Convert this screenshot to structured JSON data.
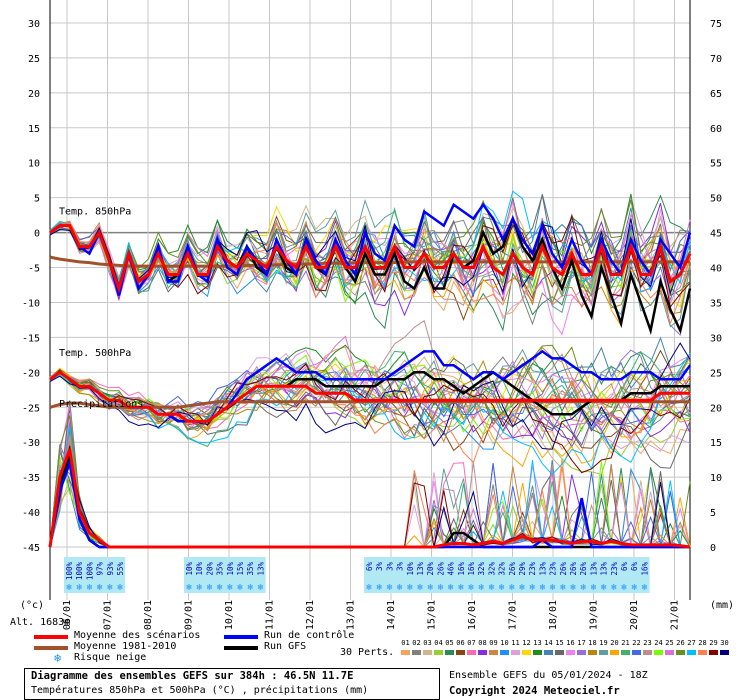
{
  "chart_data": {
    "type": "line",
    "left_axis_ticks": [
      "30",
      "25",
      "20",
      "15",
      "10",
      "5",
      "0",
      "-5",
      "-10",
      "-15",
      "-20",
      "-25",
      "-30",
      "-35",
      "-40",
      "-45"
    ],
    "right_axis_ticks": [
      "75",
      "70",
      "65",
      "60",
      "55",
      "50",
      "45",
      "40",
      "35",
      "30",
      "25",
      "20",
      "15",
      "10",
      "5",
      "0"
    ],
    "left_unit": "(°c)",
    "right_unit": "(mm)",
    "ylim_temp": [
      -45,
      30
    ],
    "ylim_precip": [
      0,
      75
    ],
    "dates": [
      "06/01",
      "07/01",
      "08/01",
      "09/01",
      "10/01",
      "11/01",
      "12/01",
      "13/01",
      "14/01",
      "15/01",
      "16/01",
      "17/01",
      "18/01",
      "19/01",
      "20/01",
      "21/01"
    ],
    "panel_labels": {
      "t850": "Temp. 850hPa",
      "t500": "Temp. 500hPa",
      "precip": "Precipitations"
    },
    "snow_risk_labels": [
      "100%",
      "100%",
      "100%",
      "97%",
      "93%",
      "55%",
      "10%",
      "10%",
      "20%",
      "35%",
      "10%",
      "15%",
      "35%",
      "13%",
      "6%",
      "3%",
      "3%",
      "3%",
      "10%",
      "13%",
      "20%",
      "26%",
      "46%",
      "16%",
      "16%",
      "32%",
      "32%",
      "32%",
      "26%",
      "29%",
      "23%",
      "13%",
      "23%",
      "26%",
      "26%",
      "26%",
      "13%",
      "13%",
      "23%",
      "6%",
      "6%",
      "16%"
    ],
    "series": [
      {
        "name": "Moyenne des scénarios",
        "color": "#ff0000",
        "t850": [
          0,
          1,
          1,
          -2,
          -2,
          0,
          -4,
          -8,
          -3,
          -7,
          -6,
          -3,
          -6,
          -6,
          -3,
          -6,
          -6,
          -2,
          -4,
          -5,
          -3,
          -4,
          -5,
          -2,
          -4,
          -5,
          -2,
          -5,
          -5,
          -2,
          -5,
          -5,
          -2,
          -5,
          -5,
          -2,
          -5,
          -5,
          -3,
          -5,
          -5,
          -3,
          -5,
          -5,
          -2,
          -5,
          -6,
          -3,
          -5,
          -6,
          -2,
          -5,
          -6,
          -3,
          -6,
          -6,
          -2,
          -6,
          -6,
          -2,
          -6,
          -6,
          -2,
          -7,
          -6,
          -3
        ],
        "t500": [
          -21,
          -20,
          -21,
          -22,
          -22,
          -23,
          -24,
          -24,
          -25,
          -25,
          -25,
          -26,
          -26,
          -26,
          -27,
          -27,
          -27,
          -26,
          -25,
          -24,
          -23,
          -22,
          -22,
          -22,
          -22,
          -22,
          -22,
          -23,
          -23,
          -23,
          -23,
          -24,
          -24,
          -24,
          -24,
          -24,
          -24,
          -24,
          -24,
          -24,
          -24,
          -24,
          -24,
          -24,
          -24,
          -24,
          -24,
          -24,
          -24,
          -24,
          -24,
          -24,
          -24,
          -24,
          -24,
          -24,
          -24,
          -24,
          -24,
          -24,
          -24,
          -24,
          -23,
          -23,
          -23,
          -23
        ],
        "precip": [
          0,
          10,
          14,
          5,
          2,
          1,
          0,
          0,
          0,
          0,
          0,
          0,
          0,
          0,
          0,
          0,
          0,
          0,
          0,
          0,
          0,
          0,
          0,
          0,
          0,
          0,
          0,
          0,
          0,
          0,
          0,
          0,
          0,
          0,
          0,
          0,
          0,
          0,
          0,
          0,
          0.3,
          0.5,
          0.5,
          0.3,
          0.5,
          0.8,
          0.5,
          1.0,
          1.5,
          1.0,
          1.0,
          1.0,
          0.8,
          0.5,
          0.8,
          0.8,
          0.5,
          0.8,
          0.5,
          0.3,
          0.3,
          0.3,
          0.3,
          0.3,
          0.2,
          0
        ]
      },
      {
        "name": "Moyenne 1981-2010",
        "color": "#a0522d",
        "t850": [
          -3.5,
          -3.8,
          -4,
          -4.2,
          -4.3,
          -4.5,
          -4.6,
          -4.7,
          -4.8,
          -4.8,
          -4.8,
          -4.8,
          -4.8,
          -4.8,
          -4.8,
          -4.8,
          -4.8,
          -4.8,
          -4.8,
          -4.8,
          -4.7,
          -4.7,
          -4.7,
          -4.6,
          -4.6,
          -4.5,
          -4.5,
          -4.5,
          -4.4,
          -4.4,
          -4.4,
          -4.3,
          -4.3,
          -4.3,
          -4.3,
          -4.3,
          -4.2,
          -4.2,
          -4.2,
          -4.2,
          -4.2,
          -4.2,
          -4.2,
          -4.2,
          -4.2,
          -4.2,
          -4.2,
          -4.2,
          -4.2,
          -4.2,
          -4.2,
          -4.2,
          -4.2,
          -4.2,
          -4.2,
          -4.2,
          -4.2,
          -4.2,
          -4.2,
          -4.2,
          -4.2,
          -4.2,
          -4.2,
          -4.2,
          -4.2,
          -4.2
        ],
        "t500": [
          -25,
          -24.6,
          -24.4,
          -24.4,
          -24.6,
          -24.8,
          -25,
          -25,
          -25,
          -25,
          -25,
          -25,
          -25,
          -25,
          -24.8,
          -24.6,
          -24.4,
          -24.2,
          -24.2,
          -24.2,
          -24.2,
          -24.2,
          -24.2,
          -24.2,
          -24.2,
          -24.2,
          -24.2,
          -24.2,
          -24.2,
          -24.2,
          -24.2,
          -24.2,
          -24.2,
          -24.2,
          -24.2,
          -24.2,
          -24.2,
          -24.2,
          -24.2,
          -24.2,
          -24.2,
          -24.2,
          -24.2,
          -24.2,
          -24.2,
          -24.2,
          -24.2,
          -24.2,
          -24.2,
          -24.2,
          -24.2,
          -24.2,
          -24.2,
          -24.2,
          -24.2,
          -24.2,
          -24.2,
          -24.2,
          -24.2,
          -24.2,
          -24.2,
          -24.2,
          -24.2,
          -24.2,
          -24.2,
          -24.2
        ]
      },
      {
        "name": "Run de contrôle",
        "color": "#0000ff",
        "t850": [
          0,
          1,
          1,
          -2,
          -3,
          0,
          -4,
          -9,
          -3,
          -8,
          -6,
          -2,
          -7,
          -7,
          -2,
          -6,
          -7,
          -1,
          -5,
          -6,
          -2,
          -4,
          -6,
          -1,
          -4,
          -6,
          -1,
          -4,
          -6,
          -1,
          -4,
          -6,
          0,
          -3,
          -4,
          1,
          -1,
          -2,
          3,
          2,
          1,
          4,
          3,
          2,
          4,
          2,
          -1,
          2,
          -1,
          -3,
          1,
          -3,
          -5,
          -1,
          -4,
          -6,
          -1,
          -4,
          -6,
          -1,
          -4,
          -6,
          -1,
          -3,
          -5,
          0
        ],
        "t500": [
          -21,
          -20,
          -21,
          -22,
          -22,
          -23,
          -24,
          -24,
          -25,
          -25,
          -25,
          -26,
          -26,
          -27,
          -27,
          -27,
          -27,
          -26,
          -25,
          -23,
          -21,
          -20,
          -19,
          -18,
          -19,
          -20,
          -20,
          -20,
          -21,
          -21,
          -21,
          -21,
          -21,
          -21,
          -21,
          -20,
          -19,
          -18,
          -17,
          -17,
          -19,
          -19,
          -20,
          -21,
          -20,
          -20,
          -21,
          -20,
          -19,
          -18,
          -17,
          -18,
          -18,
          -19,
          -20,
          -20,
          -21,
          -21,
          -21,
          -20,
          -20,
          -20,
          -21,
          -21,
          -21,
          -19
        ],
        "precip": [
          0,
          8,
          12,
          4,
          1,
          0,
          0,
          0,
          0,
          0,
          0,
          0,
          0,
          0,
          0,
          0,
          0,
          0,
          0,
          0,
          0,
          0,
          0,
          0,
          0,
          0,
          0,
          0,
          0,
          0,
          0,
          0,
          0,
          0,
          0,
          0,
          0,
          0,
          0,
          0,
          0,
          0,
          0,
          0,
          0,
          0,
          0,
          0,
          0,
          0,
          1,
          0,
          0,
          0,
          7,
          0,
          0,
          0,
          0,
          0,
          0,
          0,
          0,
          0,
          0,
          0
        ]
      },
      {
        "name": "Run GFS",
        "color": "#000000",
        "t850": [
          0,
          1,
          1,
          -2,
          -2,
          0,
          -4,
          -8,
          -3,
          -7,
          -6,
          -2,
          -7,
          -6,
          -2,
          -6,
          -6,
          -1,
          -4,
          -5,
          -2,
          -5,
          -6,
          -2,
          -5,
          -6,
          -1,
          -5,
          -6,
          -2,
          -5,
          -7,
          -3,
          -6,
          -6,
          -3,
          -7,
          -8,
          -5,
          -8,
          -8,
          -3,
          -5,
          -4,
          0,
          -3,
          -2,
          2,
          -2,
          -4,
          -1,
          -5,
          -8,
          -4,
          -9,
          -12,
          -5,
          -9,
          -13,
          -6,
          -10,
          -14,
          -7,
          -11,
          -14,
          -8
        ],
        "t500": [
          -21,
          -20,
          -21,
          -22,
          -22,
          -23,
          -24,
          -24,
          -25,
          -25,
          -25,
          -26,
          -26,
          -27,
          -27,
          -27,
          -27,
          -26,
          -25,
          -24,
          -23,
          -22,
          -22,
          -22,
          -22,
          -21,
          -21,
          -21,
          -22,
          -22,
          -22,
          -22,
          -22,
          -22,
          -21,
          -21,
          -21,
          -20,
          -20,
          -21,
          -21,
          -22,
          -23,
          -22,
          -21,
          -20,
          -21,
          -22,
          -23,
          -24,
          -25,
          -26,
          -26,
          -26,
          -25,
          -24,
          -24,
          -24,
          -24,
          -23,
          -23,
          -23,
          -22,
          -22,
          -22,
          -22
        ],
        "precip": [
          0,
          9,
          13,
          4,
          1,
          0,
          0,
          0,
          0,
          0,
          0,
          0,
          0,
          0,
          0,
          0,
          0,
          0,
          0,
          0,
          0,
          0,
          0,
          0,
          0,
          0,
          0,
          0,
          0,
          0,
          0,
          0,
          0,
          0,
          0,
          0,
          0,
          0,
          0,
          0,
          0,
          2,
          2,
          1,
          0,
          0,
          0,
          0,
          0,
          0,
          0,
          0,
          0,
          0,
          0,
          0,
          0,
          0,
          0,
          0,
          0,
          0,
          0,
          0,
          0,
          0
        ]
      }
    ],
    "perturbation_colors": [
      "#f4a460",
      "#808080",
      "#d2b48c",
      "#9acd32",
      "#2e8b57",
      "#8b4513",
      "#ff69b4",
      "#8a2be2",
      "#cd853f",
      "#1e90ff",
      "#dda0dd",
      "#ffd700",
      "#228b22",
      "#4682b4",
      "#696969",
      "#ee82ee",
      "#9370db",
      "#b8860b",
      "#5f9ea0",
      "#ffa500",
      "#3cb371",
      "#4169e1",
      "#bc8f8f",
      "#7cfc00",
      "#da70d6",
      "#6b8e23",
      "#00bfff",
      "#ff7f50",
      "#800000",
      "#000080"
    ]
  },
  "legend": [
    {
      "label": "Moyenne des scénarios",
      "color": "#ff0000"
    },
    {
      "label": "Moyenne 1981-2010",
      "color": "#a0522d"
    },
    {
      "label": "Run de contrôle",
      "color": "#0000ff"
    },
    {
      "label": "Run GFS",
      "color": "#000000"
    },
    {
      "label": "Risque neige",
      "color": "#1e90ff"
    }
  ],
  "perturbations": {
    "label": "30 Perts.",
    "numbers": [
      "01",
      "02",
      "03",
      "04",
      "05",
      "06",
      "07",
      "08",
      "09",
      "10",
      "11",
      "12",
      "13",
      "14",
      "15",
      "16",
      "17",
      "18",
      "19",
      "20",
      "21",
      "22",
      "23",
      "24",
      "25",
      "26",
      "27",
      "28",
      "29",
      "30"
    ]
  },
  "altitude": "Alt. 1683m",
  "footer": {
    "title": "Diagramme des ensembles GEFS sur 384h : 46.5N 11.7E",
    "subtitle": "Températures 850hPa et 500hPa (°C) , précipitations (mm)",
    "run": "Ensemble GEFS du 05/01/2024 - 18Z",
    "copyright": "Copyright 2024 Meteociel.fr"
  }
}
